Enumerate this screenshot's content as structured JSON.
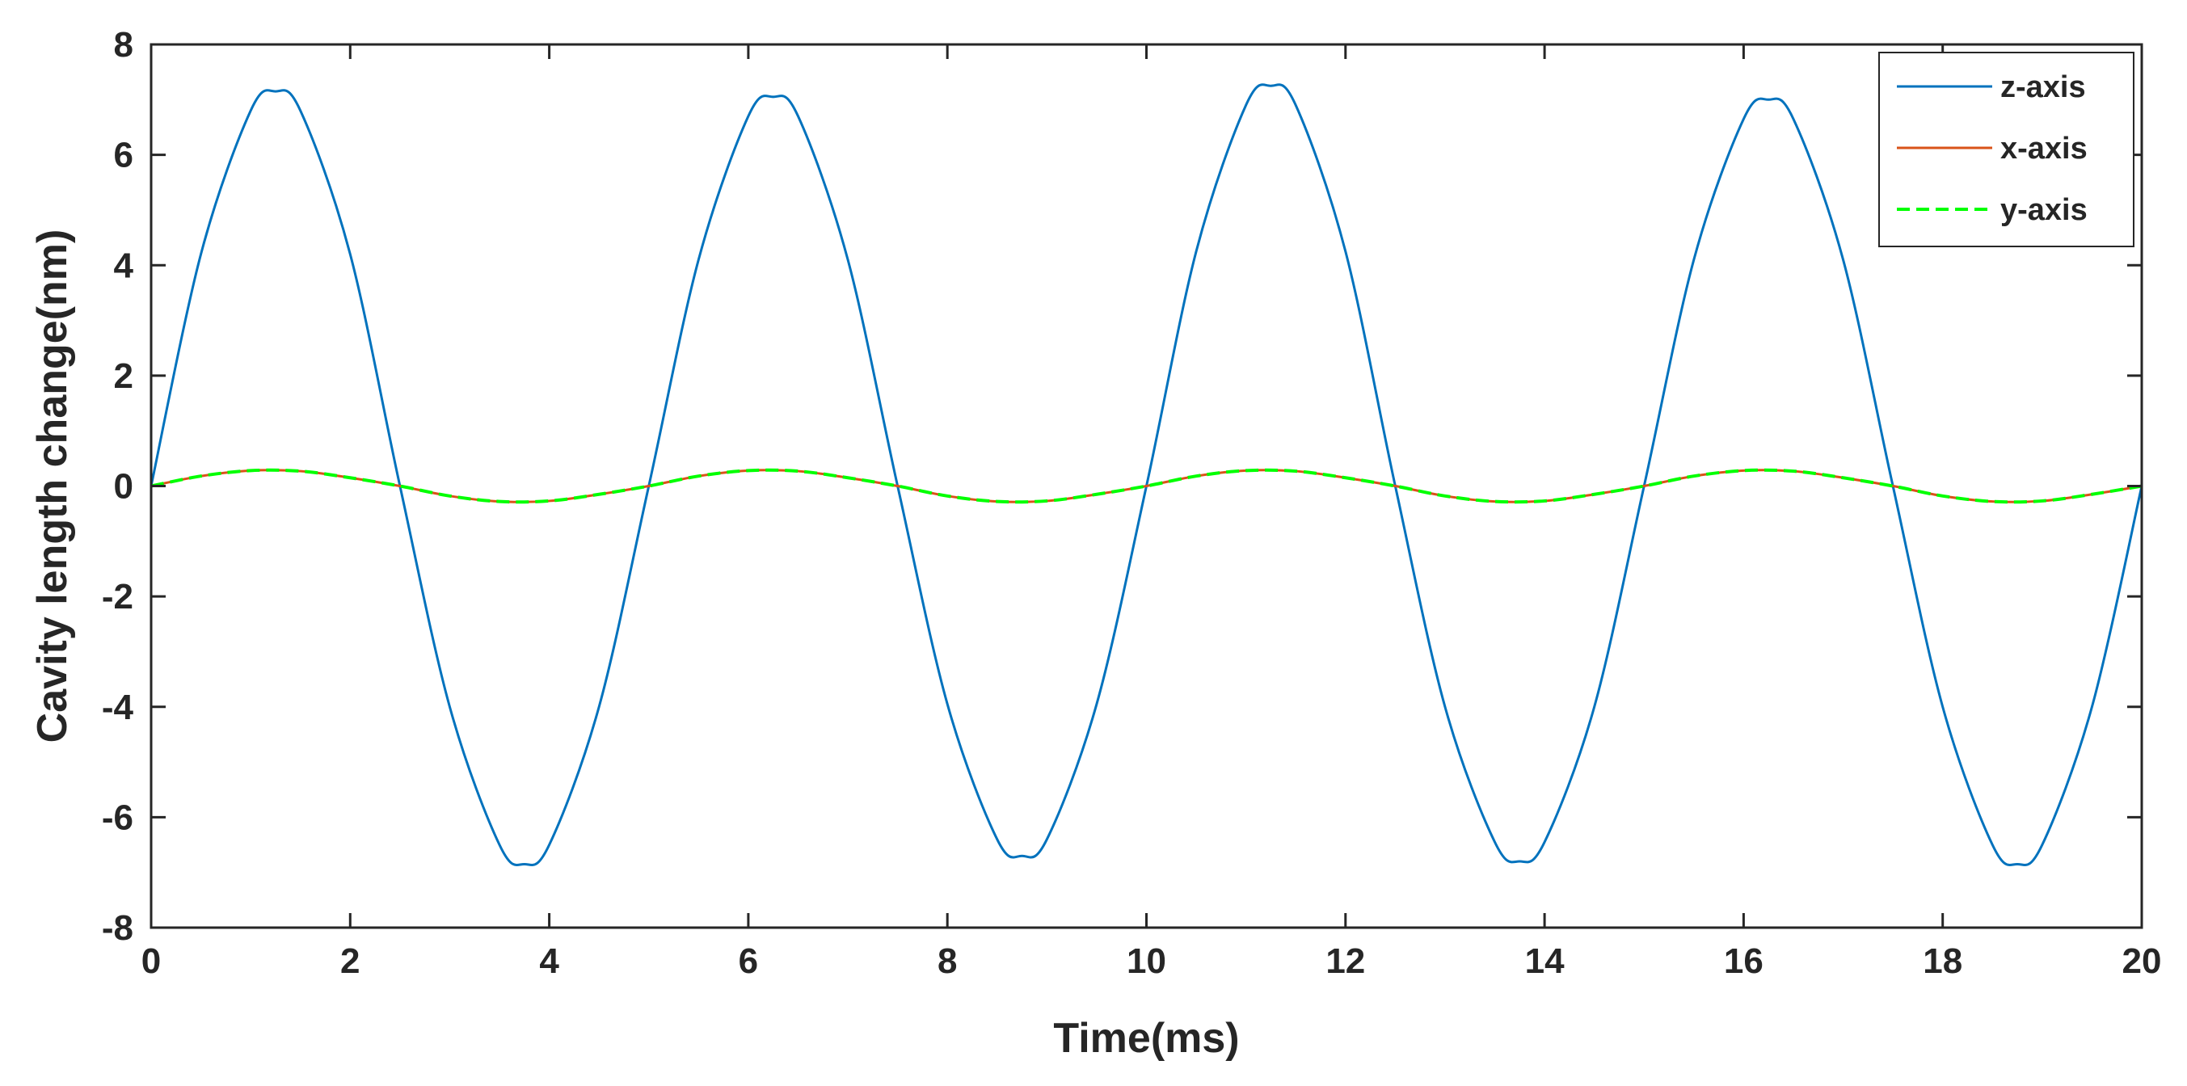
{
  "chart_data": {
    "type": "line",
    "title": "",
    "xlabel": "Time(ms)",
    "ylabel": "Cavity length change(nm)",
    "xlim": [
      0,
      20
    ],
    "ylim": [
      -8,
      8
    ],
    "xticks": [
      0,
      2,
      4,
      6,
      8,
      10,
      12,
      14,
      16,
      18,
      20
    ],
    "yticks": [
      -8,
      -6,
      -4,
      -2,
      0,
      2,
      4,
      6,
      8
    ],
    "xtick_labels": [
      "0",
      "2",
      "4",
      "6",
      "8",
      "10",
      "12",
      "14",
      "16",
      "18",
      "20"
    ],
    "ytick_labels": [
      "-8",
      "-6",
      "-4",
      "-2",
      "0",
      "2",
      "4",
      "6",
      "8"
    ],
    "grid": false,
    "legend_position": "top-right",
    "series": [
      {
        "name": "z-axis",
        "color": "#0072BD",
        "style": "solid",
        "x": [
          0,
          0.5,
          1.0,
          1.25,
          1.5,
          2.0,
          2.5,
          3.0,
          3.5,
          3.75,
          4.0,
          4.5,
          5.0,
          5.5,
          6.0,
          6.25,
          6.5,
          7.0,
          7.5,
          8.0,
          8.5,
          8.75,
          9.0,
          9.5,
          10.0,
          10.5,
          11.0,
          11.25,
          11.5,
          12.0,
          12.5,
          13.0,
          13.5,
          13.75,
          14.0,
          14.5,
          15.0,
          15.5,
          16.0,
          16.25,
          16.5,
          17.0,
          17.5,
          18.0,
          18.5,
          18.75,
          19.0,
          19.5,
          20.0
        ],
        "y": [
          0,
          4.2,
          6.8,
          7.15,
          6.8,
          4.2,
          0,
          -4.0,
          -6.5,
          -6.85,
          -6.5,
          -4.0,
          0,
          4.1,
          6.7,
          7.05,
          6.7,
          4.1,
          0,
          -3.95,
          -6.4,
          -6.7,
          -6.4,
          -3.95,
          0,
          4.25,
          6.9,
          7.25,
          6.9,
          4.25,
          0,
          -4.0,
          -6.45,
          -6.8,
          -6.45,
          -4.0,
          0,
          4.1,
          6.65,
          7.0,
          6.65,
          4.1,
          0,
          -4.0,
          -6.5,
          -6.85,
          -6.5,
          -4.0,
          0
        ]
      },
      {
        "name": "x-axis",
        "color": "#D95319",
        "style": "solid",
        "x": [
          0,
          0.5,
          1.0,
          1.5,
          2.0,
          2.5,
          3.0,
          3.5,
          4.0,
          4.5,
          5.0,
          5.5,
          6.0,
          6.5,
          7.0,
          7.5,
          8.0,
          8.5,
          9.0,
          9.5,
          10.0,
          10.5,
          11.0,
          11.5,
          12.0,
          12.5,
          13.0,
          13.5,
          14.0,
          14.5,
          15.0,
          15.5,
          16.0,
          16.5,
          17.0,
          17.5,
          18.0,
          18.5,
          19.0,
          19.5,
          20.0
        ],
        "y": [
          0,
          0.18,
          0.28,
          0.27,
          0.15,
          0,
          -0.18,
          -0.28,
          -0.27,
          -0.15,
          0,
          0.18,
          0.28,
          0.27,
          0.15,
          0,
          -0.18,
          -0.28,
          -0.27,
          -0.15,
          0,
          0.18,
          0.28,
          0.27,
          0.15,
          0,
          -0.18,
          -0.28,
          -0.27,
          -0.15,
          0,
          0.18,
          0.28,
          0.27,
          0.15,
          0,
          -0.18,
          -0.28,
          -0.27,
          -0.15,
          0
        ]
      },
      {
        "name": "y-axis",
        "color": "#00FF00",
        "style": "dashed",
        "x": [
          0,
          0.5,
          1.0,
          1.5,
          2.0,
          2.5,
          3.0,
          3.5,
          4.0,
          4.5,
          5.0,
          5.5,
          6.0,
          6.5,
          7.0,
          7.5,
          8.0,
          8.5,
          9.0,
          9.5,
          10.0,
          10.5,
          11.0,
          11.5,
          12.0,
          12.5,
          13.0,
          13.5,
          14.0,
          14.5,
          15.0,
          15.5,
          16.0,
          16.5,
          17.0,
          17.5,
          18.0,
          18.5,
          19.0,
          19.5,
          20.0
        ],
        "y": [
          0,
          0.18,
          0.28,
          0.27,
          0.15,
          0,
          -0.18,
          -0.28,
          -0.27,
          -0.15,
          0,
          0.18,
          0.28,
          0.27,
          0.15,
          0,
          -0.18,
          -0.28,
          -0.27,
          -0.15,
          0,
          0.18,
          0.28,
          0.27,
          0.15,
          0,
          -0.18,
          -0.28,
          -0.27,
          -0.15,
          0,
          0.18,
          0.28,
          0.27,
          0.15,
          0,
          -0.18,
          -0.28,
          -0.27,
          -0.15,
          0
        ]
      }
    ]
  }
}
